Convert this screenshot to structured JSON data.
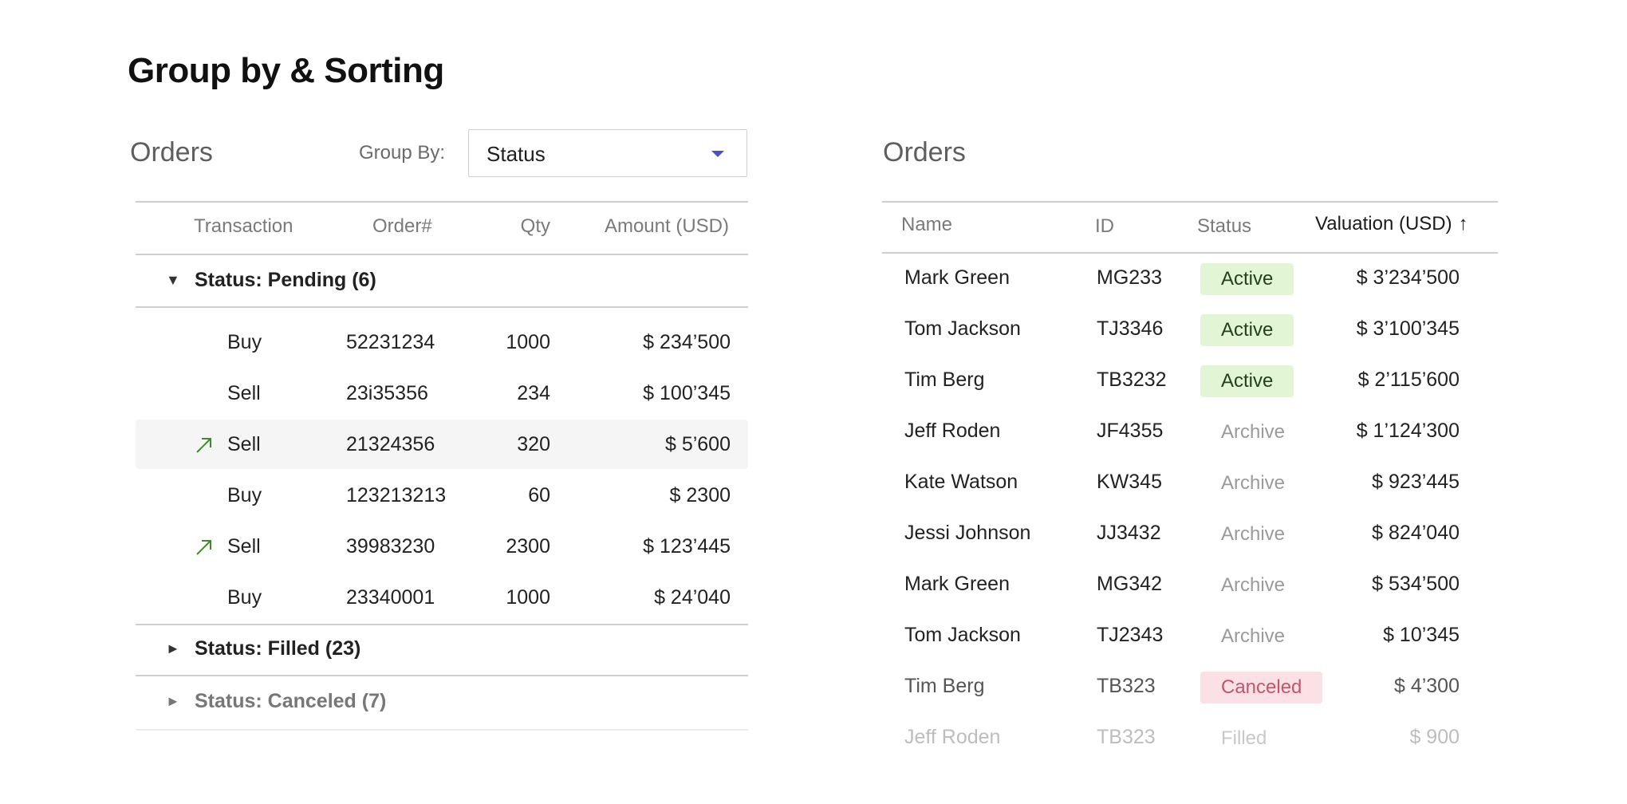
{
  "page": {
    "title": "Group by & Sorting"
  },
  "left": {
    "title": "Orders",
    "group_by_label": "Group By:",
    "group_by_value": "Status",
    "columns": [
      "Transaction",
      "Order#",
      "Qty",
      "Amount (USD)"
    ],
    "groups": [
      {
        "label": "Status: Pending (6)",
        "expanded": true,
        "rows": [
          {
            "tx": "Buy",
            "order": "52231234",
            "qty": "1000",
            "amount": "$ 234’500",
            "arrow": false
          },
          {
            "tx": "Sell",
            "order": "23i35356",
            "qty": "234",
            "amount": "$ 100’345",
            "arrow": false
          },
          {
            "tx": "Sell",
            "order": "21324356",
            "qty": "320",
            "amount": "$ 5’600",
            "arrow": true
          },
          {
            "tx": "Buy",
            "order": "123213213",
            "qty": "60",
            "amount": "$ 2300",
            "arrow": false
          },
          {
            "tx": "Sell",
            "order": "39983230",
            "qty": "2300",
            "amount": "$ 123’445",
            "arrow": true
          },
          {
            "tx": "Buy",
            "order": "23340001",
            "qty": "1000",
            "amount": "$ 24’040",
            "arrow": false
          }
        ]
      },
      {
        "label": "Status: Filled (23)",
        "expanded": false
      },
      {
        "label": "Status: Canceled (7)",
        "expanded": false
      }
    ],
    "arrow_color": "#3f8a2a"
  },
  "right": {
    "title": "Orders",
    "columns": [
      "Name",
      "ID",
      "Status",
      "Valuation (USD)"
    ],
    "sort_icon": "arrow-up-icon",
    "rows": [
      {
        "name": "Mark Green",
        "id": "MG233",
        "status": "Active",
        "value": "$ 3’234’500"
      },
      {
        "name": "Tom Jackson",
        "id": "TJ3346",
        "status": "Active",
        "value": "$ 3’100’345"
      },
      {
        "name": "Tim Berg",
        "id": "TB3232",
        "status": "Active",
        "value": "$ 2’115’600"
      },
      {
        "name": "Jeff Roden",
        "id": "JF4355",
        "status": "Archive",
        "value": "$ 1’124’300"
      },
      {
        "name": "Kate Watson",
        "id": "KW345",
        "status": "Archive",
        "value": "$ 923’445"
      },
      {
        "name": "Jessi Johnson",
        "id": "JJ3432",
        "status": "Archive",
        "value": "$ 824’040"
      },
      {
        "name": "Mark Green",
        "id": "MG342",
        "status": "Archive",
        "value": "$ 534’500"
      },
      {
        "name": "Tom Jackson",
        "id": "TJ2343",
        "status": "Archive",
        "value": "$ 10’345"
      },
      {
        "name": "Tim Berg",
        "id": "TB323",
        "status": "Canceled",
        "value": "$ 4’300"
      },
      {
        "name": "Jeff Roden",
        "id": "TB323",
        "status": "Filled",
        "value": "$ 900"
      }
    ],
    "status_colors": {
      "active": "#e2f6d6",
      "canceled": "#fbe0e5"
    }
  }
}
